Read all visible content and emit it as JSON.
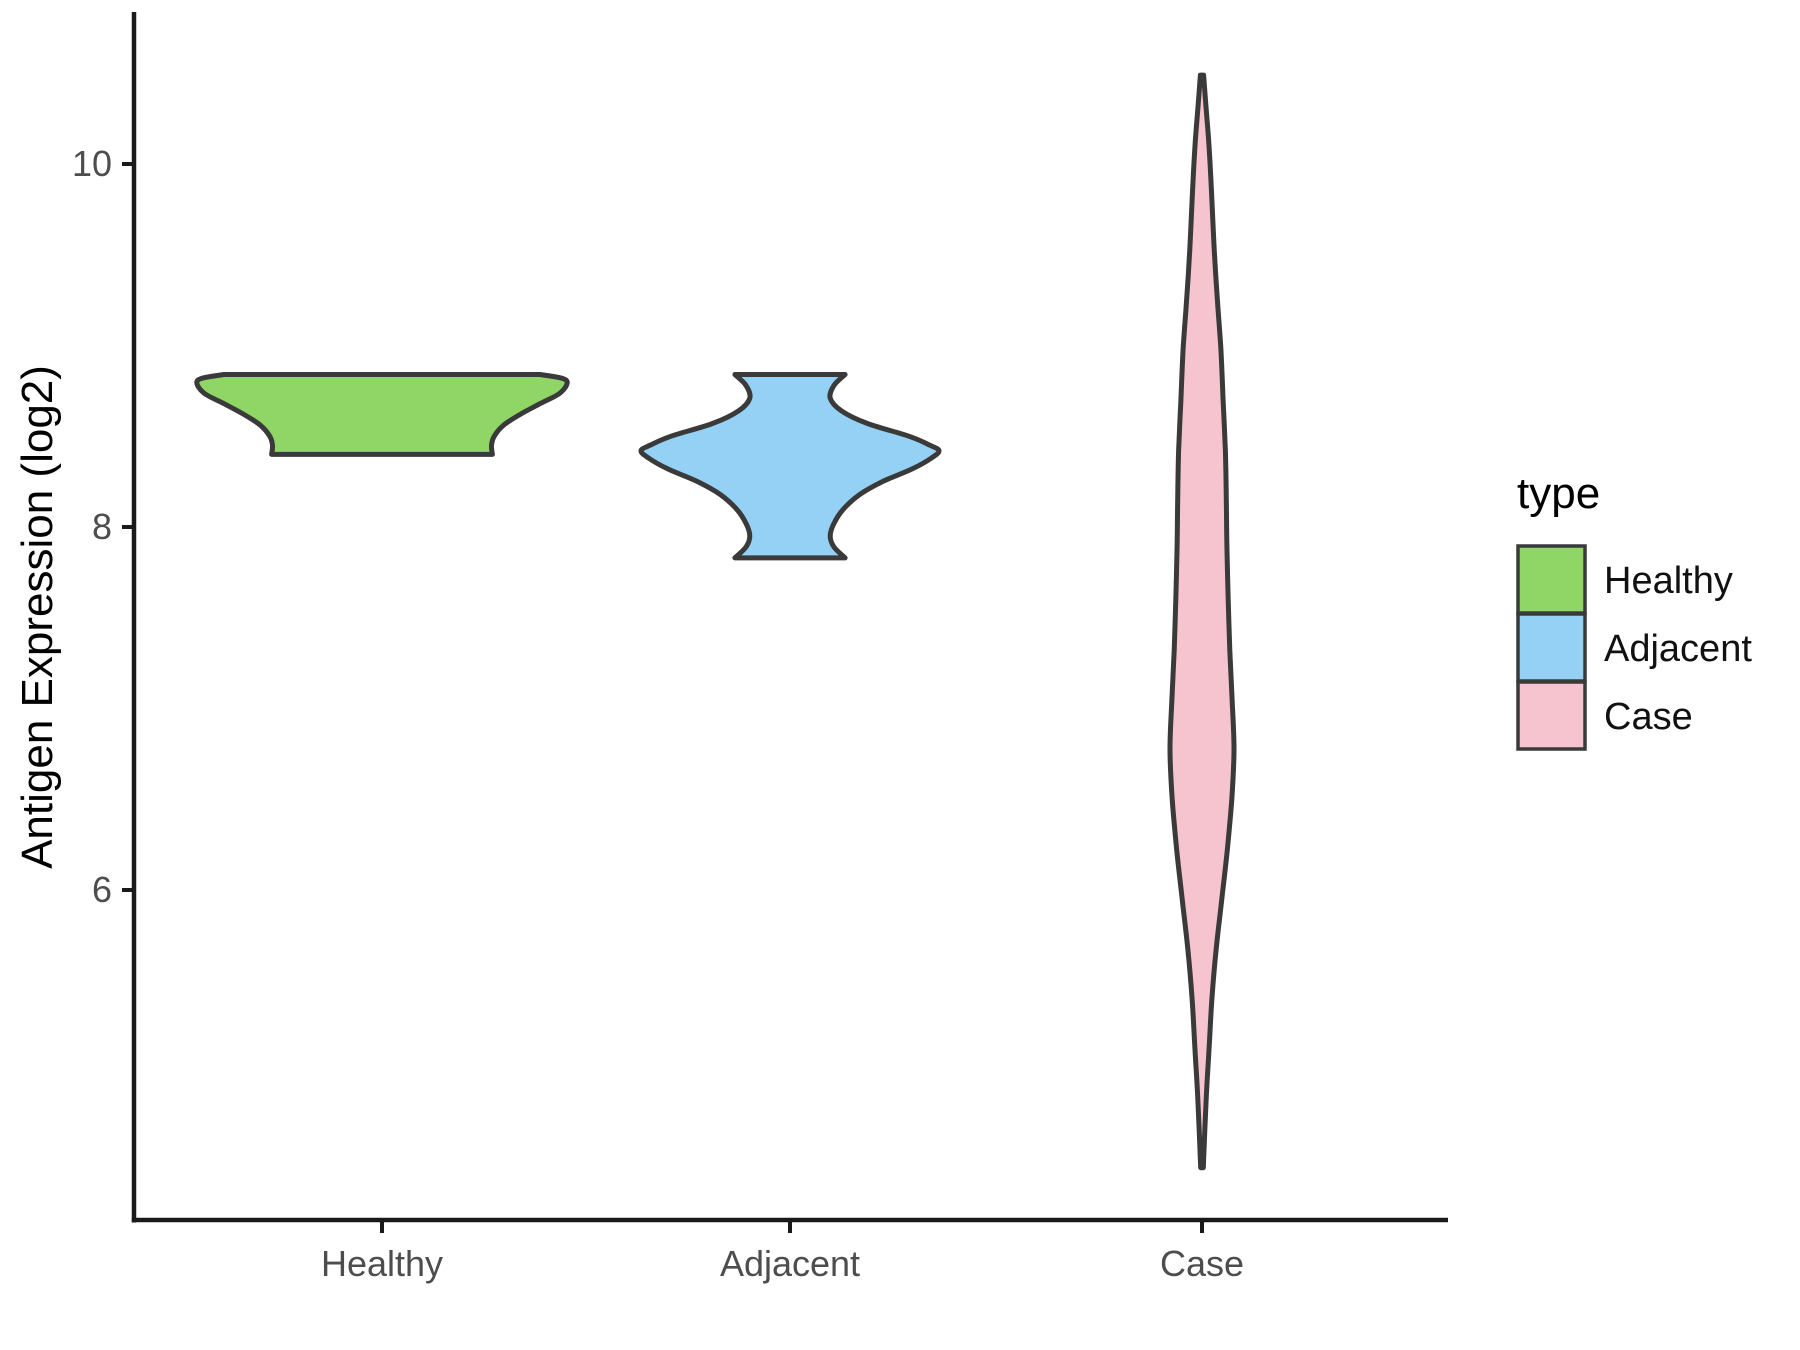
{
  "figure": {
    "background": "#FFFFFF",
    "outline_color": "#3A3A3A",
    "axis_line_color": "#1A1A1A",
    "axis_text_color": "#4D4D4D"
  },
  "y_axis": {
    "title": "Antigen Expression (log2)",
    "tick_values": [
      10,
      8,
      6
    ]
  },
  "x_axis": {
    "categories": [
      "Healthy",
      "Adjacent",
      "Case"
    ]
  },
  "legend": {
    "title": "type",
    "entries": [
      {
        "label": "Healthy",
        "color": "#8FD666"
      },
      {
        "label": "Adjacent",
        "color": "#95D0F5"
      },
      {
        "label": "Case",
        "color": "#F6C4CF"
      }
    ]
  },
  "chart_data": {
    "type": "violin",
    "title": "",
    "xlabel": "",
    "ylabel": "Antigen Expression (log2)",
    "ylim": [
      4.2,
      10.8
    ],
    "y_ticks": [
      6,
      8,
      10
    ],
    "grid": false,
    "legend_position": "right",
    "categories": [
      "Healthy",
      "Adjacent",
      "Case"
    ],
    "series": [
      {
        "name": "Healthy",
        "color": "#8FD666",
        "min": 8.4,
        "max": 8.84,
        "peak_value": 8.81,
        "shape": "wide flat band, widest near top, narrower lower shelf",
        "density_profile": [
          [
            8.84,
            0.86
          ],
          [
            8.81,
            1.0
          ],
          [
            8.74,
            0.97
          ],
          [
            8.68,
            0.86
          ],
          [
            8.62,
            0.75
          ],
          [
            8.56,
            0.66
          ],
          [
            8.5,
            0.61
          ],
          [
            8.45,
            0.595
          ],
          [
            8.4,
            0.6
          ]
        ]
      },
      {
        "name": "Adjacent",
        "color": "#95D0F5",
        "min": 7.83,
        "max": 8.84,
        "peak_value": 8.42,
        "shape": "hourglass: narrow necks at top and bottom, wide diamond bulge at centre",
        "density_profile": [
          [
            8.84,
            0.37
          ],
          [
            8.78,
            0.295
          ],
          [
            8.71,
            0.27
          ],
          [
            8.64,
            0.345
          ],
          [
            8.57,
            0.52
          ],
          [
            8.5,
            0.8
          ],
          [
            8.45,
            0.94
          ],
          [
            8.42,
            1.0
          ],
          [
            8.38,
            0.95
          ],
          [
            8.32,
            0.82
          ],
          [
            8.25,
            0.62
          ],
          [
            8.18,
            0.47
          ],
          [
            8.1,
            0.36
          ],
          [
            8.02,
            0.295
          ],
          [
            7.95,
            0.27
          ],
          [
            7.89,
            0.295
          ],
          [
            7.83,
            0.37
          ]
        ]
      },
      {
        "name": "Case",
        "color": "#F6C4CF",
        "min": 4.47,
        "max": 10.49,
        "peak_value": 6.77,
        "shape": "long thin spindle spanning whole axis, widest near 6.8",
        "density_profile": [
          [
            10.49,
            0.05
          ],
          [
            10.3,
            0.13
          ],
          [
            10.1,
            0.22
          ],
          [
            9.8,
            0.31
          ],
          [
            9.53,
            0.38
          ],
          [
            9.25,
            0.48
          ],
          [
            8.98,
            0.59
          ],
          [
            8.7,
            0.66
          ],
          [
            8.42,
            0.73
          ],
          [
            8.15,
            0.76
          ],
          [
            7.87,
            0.78
          ],
          [
            7.6,
            0.82
          ],
          [
            7.32,
            0.87
          ],
          [
            7.05,
            0.94
          ],
          [
            6.77,
            1.0
          ],
          [
            6.5,
            0.93
          ],
          [
            6.22,
            0.79
          ],
          [
            5.95,
            0.62
          ],
          [
            5.67,
            0.44
          ],
          [
            5.4,
            0.31
          ],
          [
            5.12,
            0.22
          ],
          [
            4.85,
            0.13
          ],
          [
            4.47,
            0.04
          ]
        ]
      }
    ]
  }
}
